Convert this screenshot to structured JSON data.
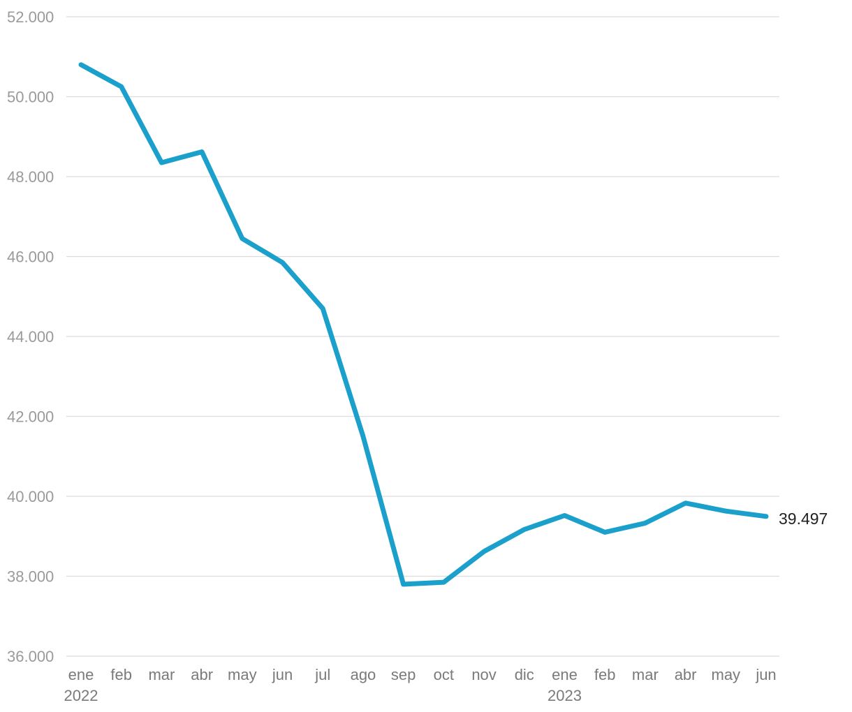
{
  "chart_data": {
    "type": "line",
    "categories": [
      "ene",
      "feb",
      "mar",
      "abr",
      "may",
      "jun",
      "jul",
      "ago",
      "sep",
      "oct",
      "nov",
      "dic",
      "ene",
      "feb",
      "mar",
      "abr",
      "may",
      "jun"
    ],
    "year_labels": [
      {
        "index": 0,
        "label": "2022"
      },
      {
        "index": 12,
        "label": "2023"
      }
    ],
    "series": [
      {
        "values": [
          50800,
          50250,
          48350,
          48620,
          46450,
          45850,
          44700,
          41500,
          37800,
          37850,
          38620,
          39170,
          39520,
          39100,
          39330,
          39830,
          39630,
          39497
        ]
      }
    ],
    "y_ticks": [
      "36.000",
      "38.000",
      "40.000",
      "42.000",
      "44.000",
      "46.000",
      "48.000",
      "50.000",
      "52.000"
    ],
    "ylim": [
      36000,
      52000
    ],
    "end_label": "39.497",
    "grid": true,
    "line_color": "#1ba0cc",
    "title": "",
    "xlabel": "",
    "ylabel": ""
  }
}
